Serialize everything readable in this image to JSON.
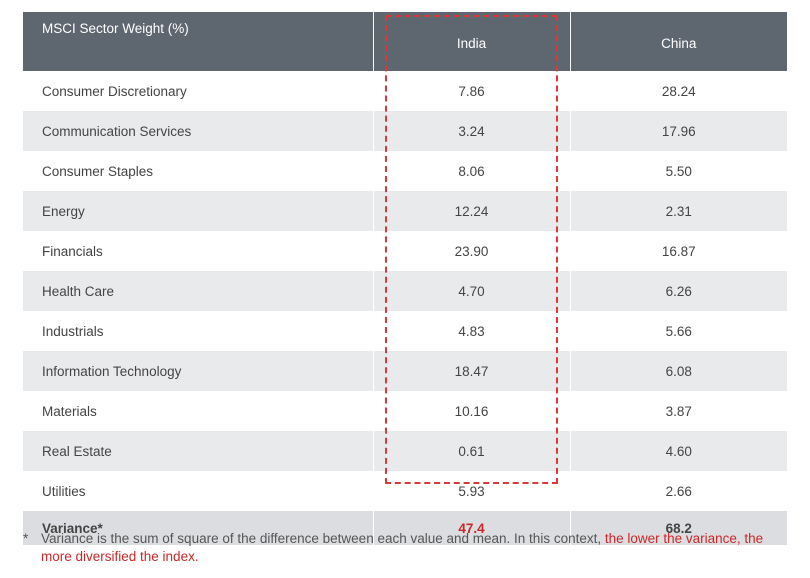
{
  "chart_data": {
    "type": "table",
    "columns": [
      "MSCI Sector Weight (%)",
      "India",
      "China"
    ],
    "rows": [
      {
        "sector": "Consumer Discretionary",
        "india": "7.86",
        "china": "28.24"
      },
      {
        "sector": "Communication Services",
        "india": "3.24",
        "china": "17.96"
      },
      {
        "sector": "Consumer Staples",
        "india": "8.06",
        "china": "5.50"
      },
      {
        "sector": "Energy",
        "india": "12.24",
        "china": "2.31"
      },
      {
        "sector": "Financials",
        "india": "23.90",
        "china": "16.87"
      },
      {
        "sector": "Health Care",
        "india": "4.70",
        "china": "6.26"
      },
      {
        "sector": "Industrials",
        "india": "4.83",
        "china": "5.66"
      },
      {
        "sector": "Information Technology",
        "india": "18.47",
        "china": "6.08"
      },
      {
        "sector": "Materials",
        "india": "10.16",
        "china": "3.87"
      },
      {
        "sector": "Real Estate",
        "india": "0.61",
        "china": "4.60"
      },
      {
        "sector": "Utilities",
        "india": "5.93",
        "china": "2.66"
      }
    ],
    "summary": {
      "label": "Variance*",
      "india": "47.4",
      "china": "68.2"
    },
    "highlight_column": "India",
    "colors": {
      "header_bg": "#5e6670",
      "stripe_bg": "#e9eaec",
      "variance_bg": "#dcdde0",
      "accent": "#c8282a"
    }
  },
  "footnote": {
    "marker": "*",
    "text_plain": "Variance is the sum of square of the difference between each value and mean. In this context, ",
    "text_highlight": "the lower the variance, the more diversified the index."
  }
}
